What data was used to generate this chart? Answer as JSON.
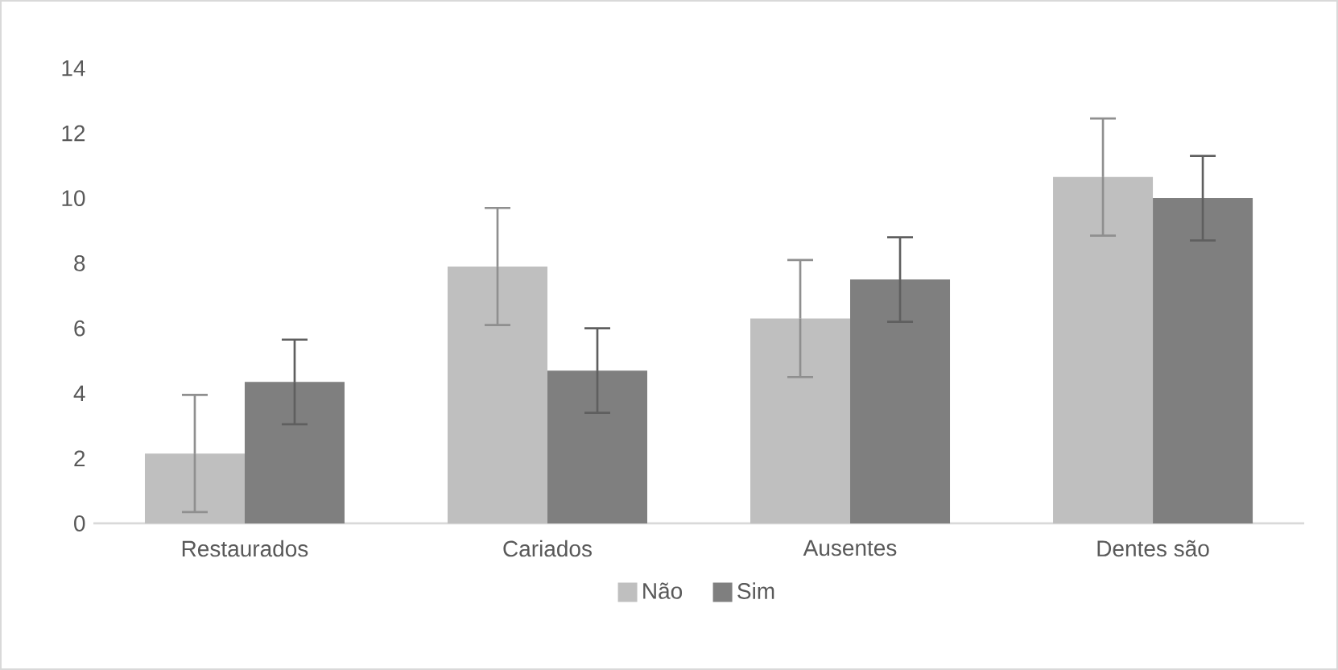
{
  "chart_data": {
    "type": "bar",
    "categories": [
      "Restaurados",
      "Cariados",
      "Ausentes",
      "Dentes são"
    ],
    "series": [
      {
        "name": "Não",
        "color": "#bfbfbf",
        "values": [
          2.15,
          7.9,
          6.3,
          10.65
        ],
        "errors": [
          1.8,
          1.8,
          1.8,
          1.8
        ]
      },
      {
        "name": "Sim",
        "color": "#7f7f7f",
        "values": [
          4.35,
          4.7,
          7.5,
          10.0
        ],
        "errors": [
          1.3,
          1.3,
          1.3,
          1.3
        ]
      }
    ],
    "ylim": [
      0,
      14
    ],
    "yticks": [
      0,
      2,
      4,
      6,
      8,
      10,
      12,
      14
    ],
    "grid": false,
    "legend": "bottom"
  }
}
